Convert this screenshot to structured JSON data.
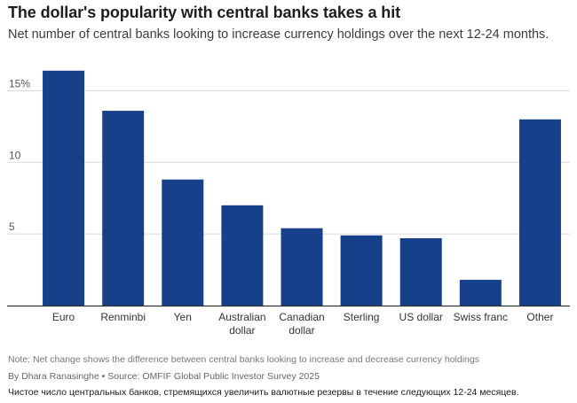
{
  "header": {
    "title": "The dollar's popularity with central banks takes a hit",
    "subtitle": "Net number of central banks looking to increase currency holdings over the next 12-24 months."
  },
  "chart_data": {
    "type": "bar",
    "title": "The dollar's popularity with central banks takes a hit",
    "subtitle": "Net number of central banks looking to increase currency holdings over the next 12-24 months.",
    "categories": [
      [
        "Euro"
      ],
      [
        "Renminbi"
      ],
      [
        "Yen"
      ],
      [
        "Australian",
        "dollar"
      ],
      [
        "Canadian",
        "dollar"
      ],
      [
        "Sterling"
      ],
      [
        "US dollar"
      ],
      [
        "Swiss franc"
      ],
      [
        "Other"
      ]
    ],
    "values": [
      16.4,
      13.6,
      8.8,
      7.0,
      5.4,
      4.9,
      4.7,
      1.8,
      13.0
    ],
    "xlabel": "",
    "ylabel": "",
    "ylim": [
      0,
      17.5
    ],
    "yticks": [
      {
        "value": 5,
        "label": "5"
      },
      {
        "value": 10,
        "label": "10"
      },
      {
        "value": 15,
        "label": "15%"
      }
    ],
    "grid": true,
    "bar_color": "#16418a"
  },
  "footer": {
    "note": "Note: Net change shows the difference between central banks looking to increase and decrease currency holdings",
    "byline": "By Dhara Ranasinghe  • Source: OMFIF Global Public Investor Survey 2025",
    "translation": "Чистое число центральных банков, стремящихся увеличить валютные резервы в течение следующих 12-24 месяцев."
  }
}
